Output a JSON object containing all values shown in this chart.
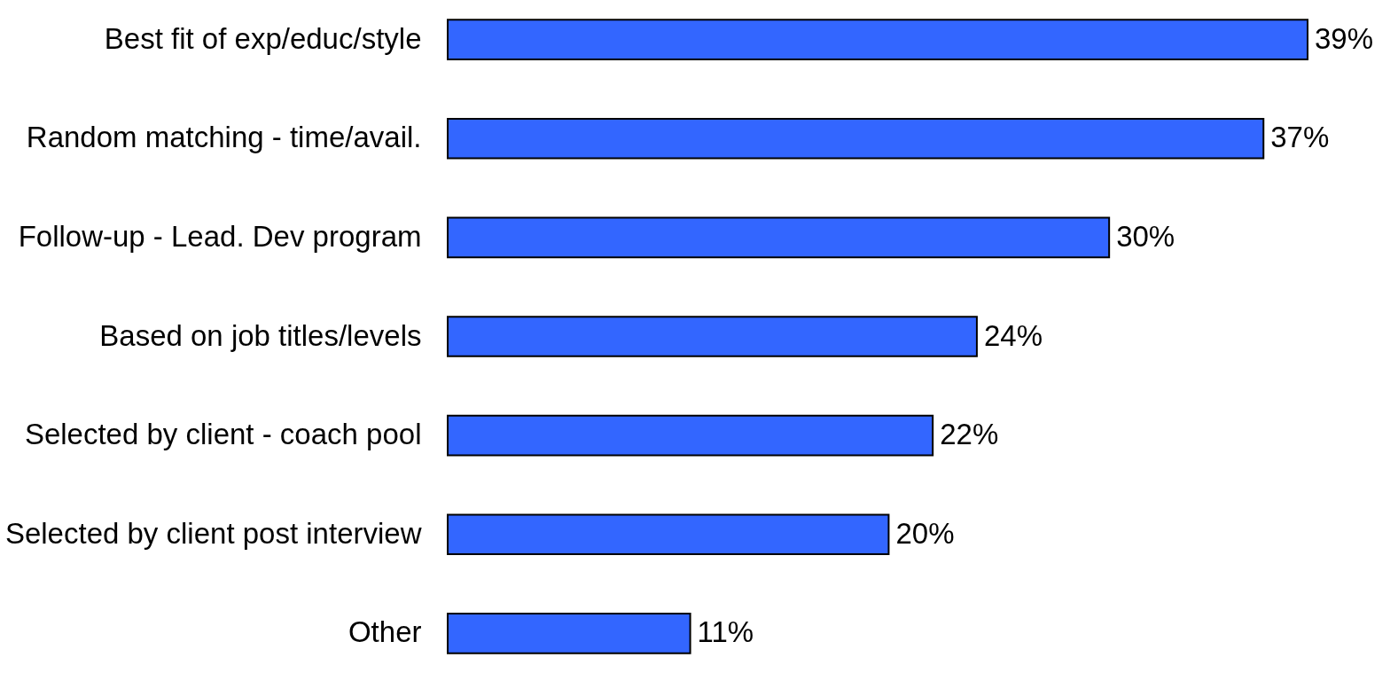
{
  "chart_data": {
    "type": "bar",
    "orientation": "horizontal",
    "categories": [
      "Best fit of exp/educ/style",
      "Random matching - time/avail.",
      "Follow-up - Lead. Dev program",
      "Based on job titles/levels",
      "Selected by client - coach pool",
      "Selected by client post interview",
      "Other"
    ],
    "values": [
      39,
      37,
      30,
      24,
      22,
      20,
      11
    ],
    "value_labels": [
      "39%",
      "37%",
      "30%",
      "24%",
      "22%",
      "20%",
      "11%"
    ],
    "color": "#3366ff",
    "grid": false
  }
}
